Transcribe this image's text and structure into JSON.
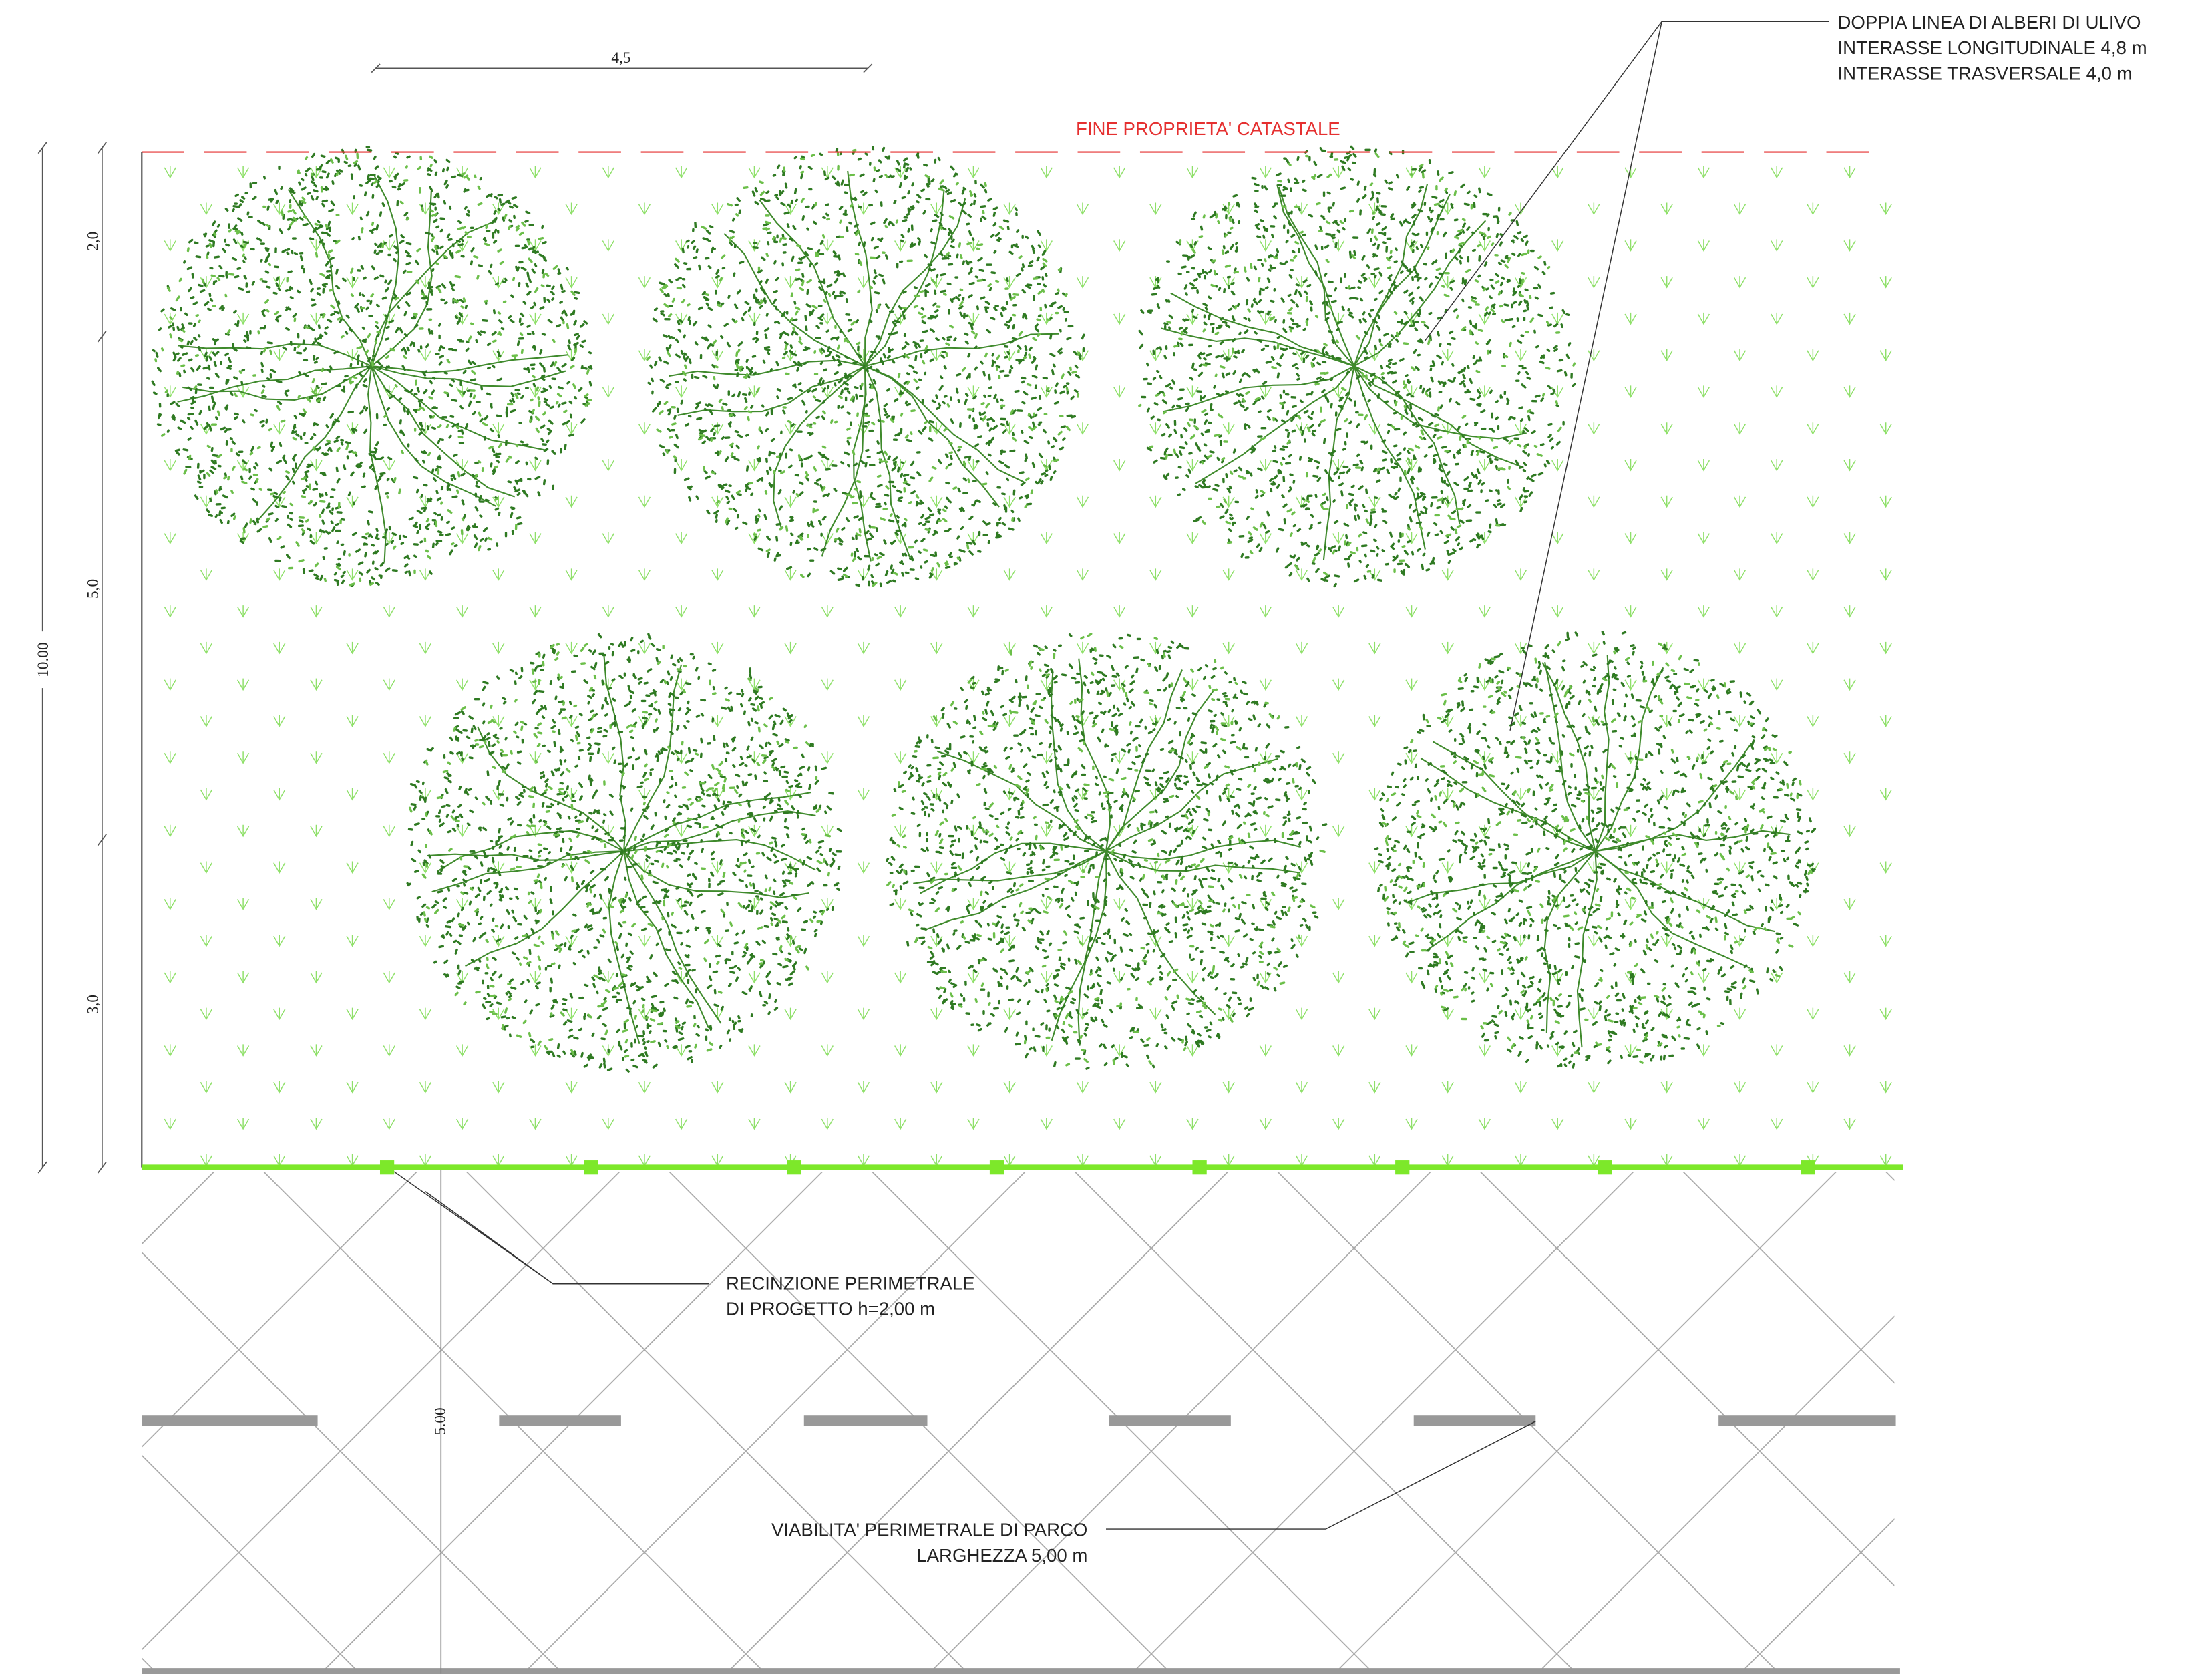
{
  "top_dimension": "4,5",
  "boundary_label": "FINE PROPRIETA' CATASTALE",
  "trees_note": [
    "DOPPIA LINEA DI ALBERI DI ULIVO",
    "INTERASSE LONGITUDINALE 4,8 m",
    "INTERASSE TRASVERSALE 4,0 m"
  ],
  "left_dimensions": {
    "segments": [
      "2,0",
      "5,0",
      "3,0"
    ],
    "total": "10.00"
  },
  "fence_note": [
    "RECINZIONE PERIMETRALE",
    "DI PROGETTO h=2,00 m"
  ],
  "road_dimension": "5.00",
  "road_note": [
    "VIABILITA' PERIMETRALE DI PARCO",
    "LARGHEZZA 5,00 m"
  ]
}
